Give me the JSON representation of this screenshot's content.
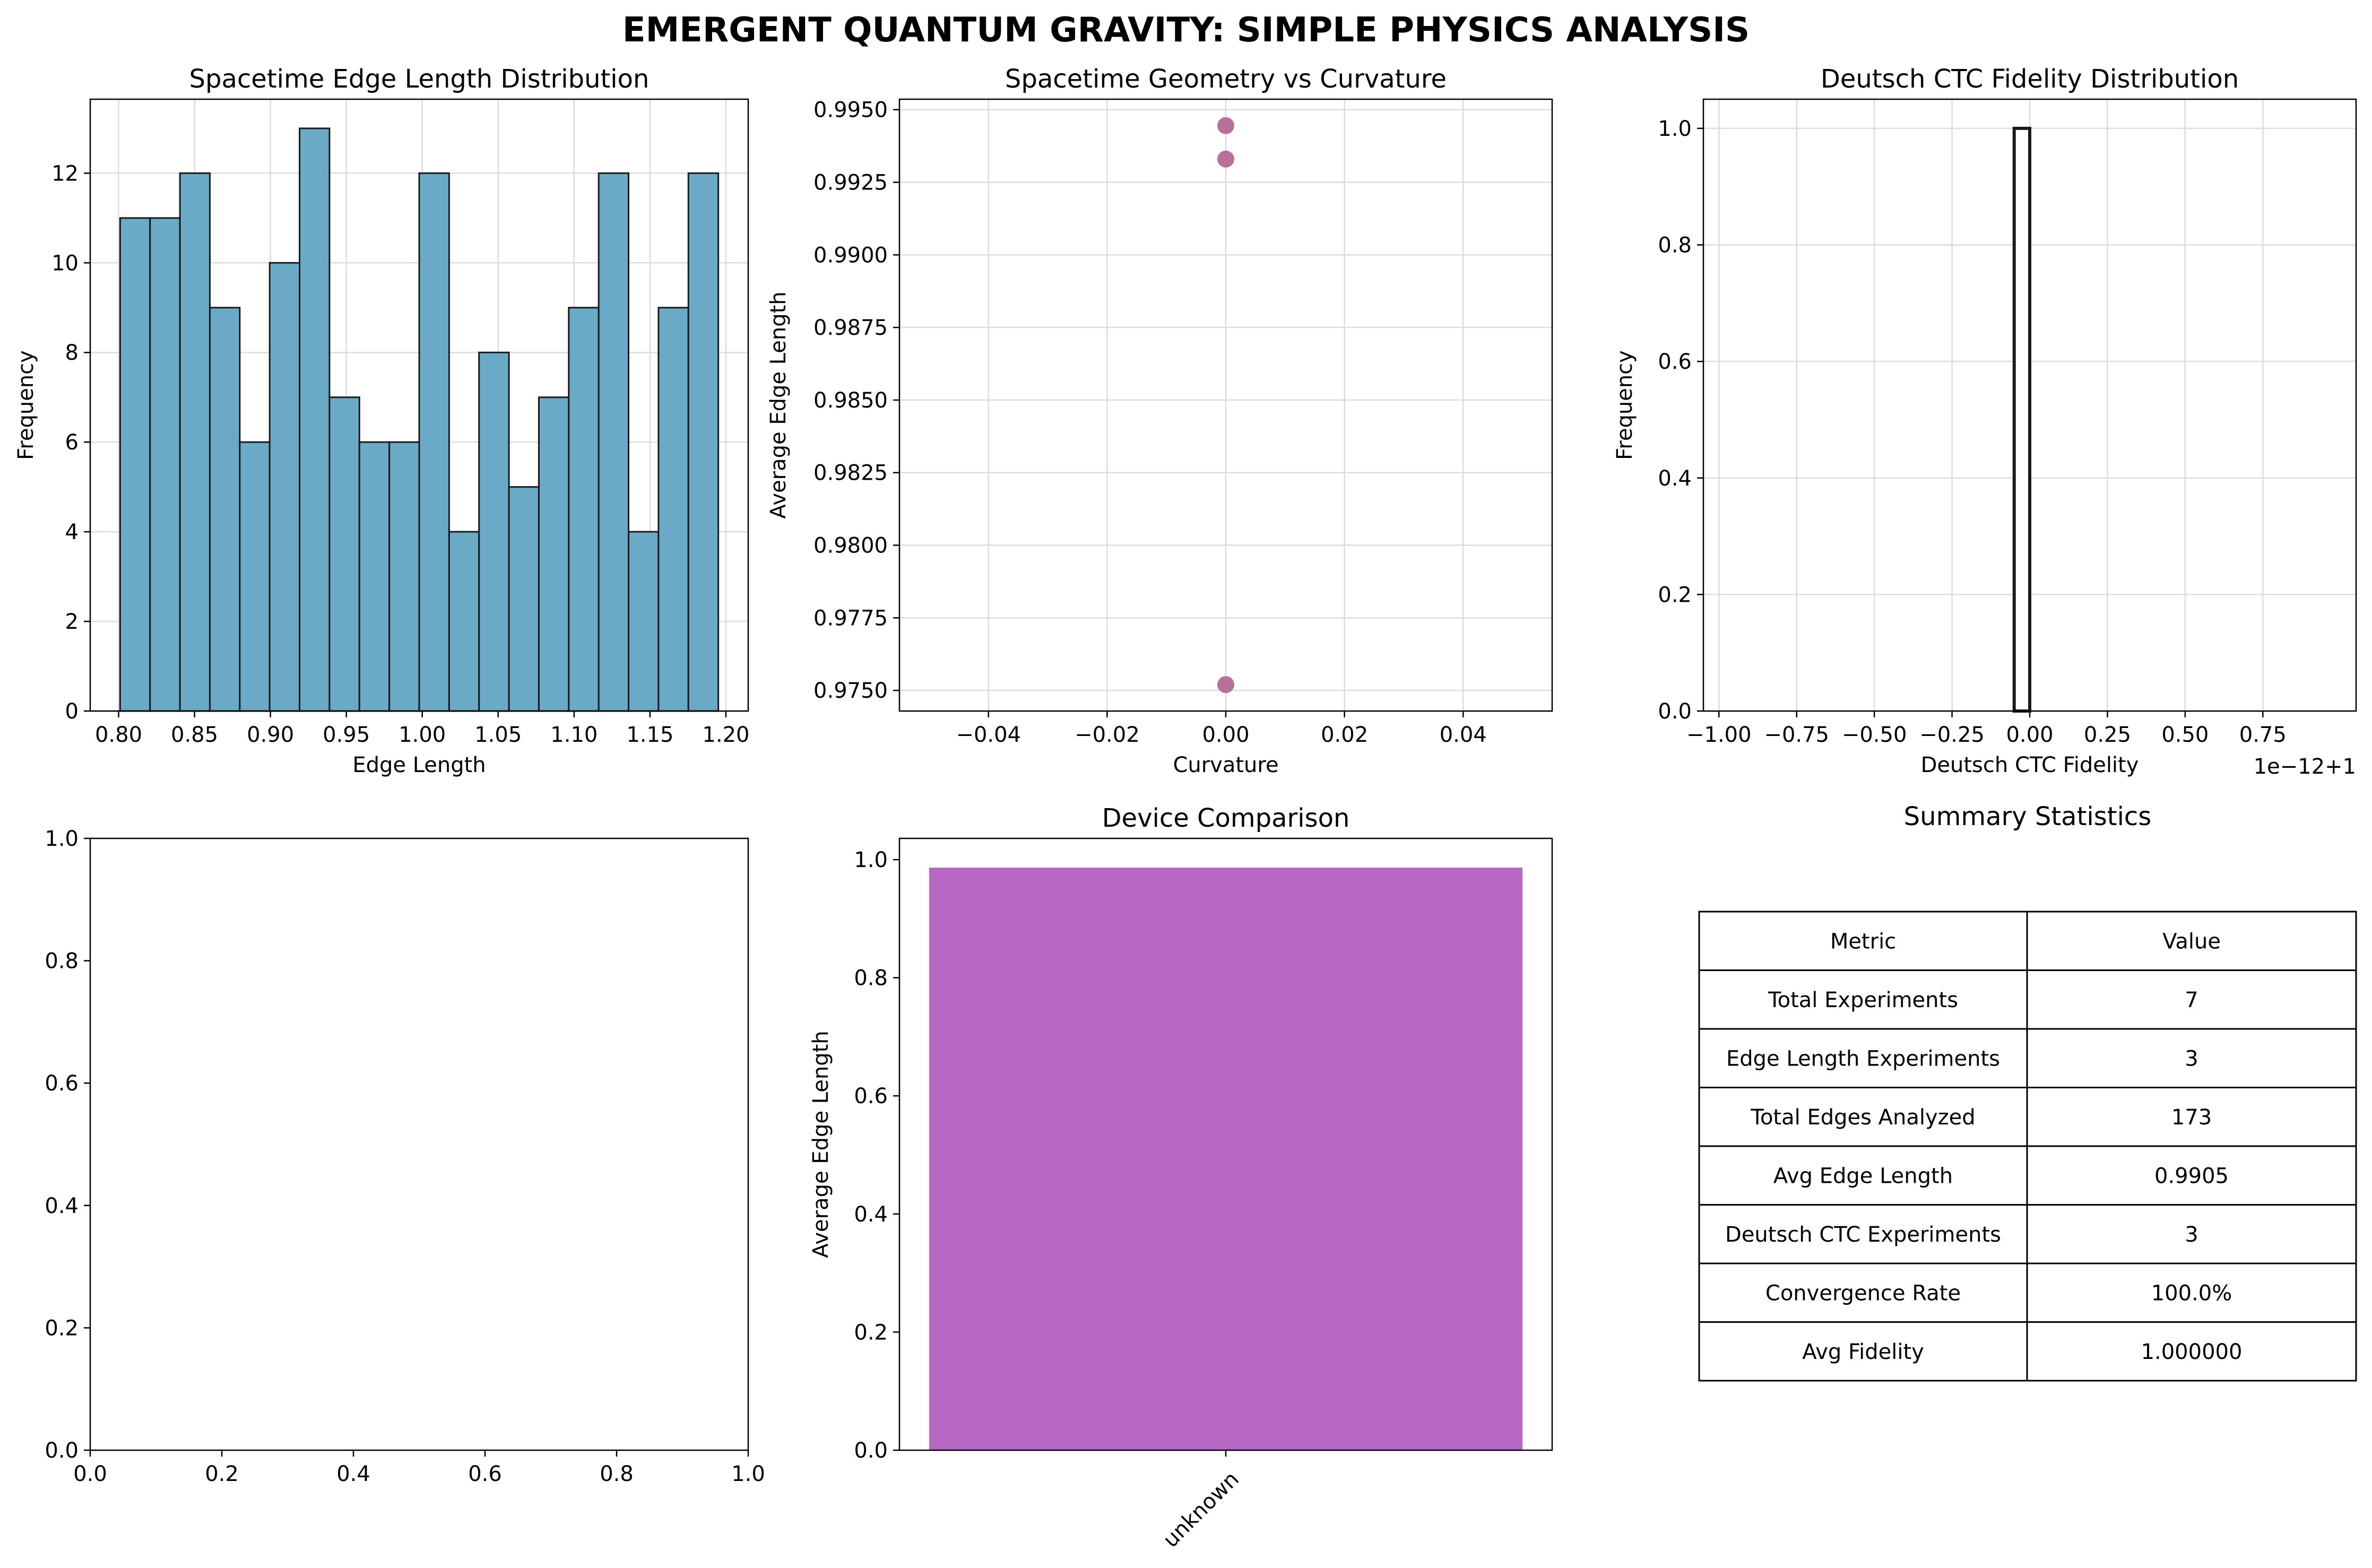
{
  "figure": {
    "suptitle": "EMERGENT QUANTUM GRAVITY: SIMPLE PHYSICS ANALYSIS"
  },
  "chart_data": [
    {
      "id": "edge_hist",
      "type": "bar",
      "title": "Spacetime Edge Length Distribution",
      "xlabel": "Edge Length",
      "ylabel": "Frequency",
      "bin_edges": [
        0.801,
        0.8207,
        0.8404,
        0.8601,
        0.8798,
        0.8995,
        0.9192,
        0.9389,
        0.9586,
        0.9783,
        0.998,
        1.0177,
        1.0374,
        1.0571,
        1.0768,
        1.0965,
        1.1162,
        1.1359,
        1.1556,
        1.1753,
        1.195
      ],
      "values": [
        11,
        11,
        12,
        9,
        6,
        10,
        13,
        7,
        6,
        6,
        12,
        4,
        8,
        5,
        7,
        9,
        12,
        4,
        9,
        12
      ],
      "xlim": [
        0.7813,
        1.2147
      ],
      "ylim": [
        0,
        13.65
      ],
      "xticks": [
        "0.80",
        "0.85",
        "0.90",
        "0.95",
        "1.00",
        "1.05",
        "1.10",
        "1.15",
        "1.20"
      ],
      "xtick_values": [
        0.8,
        0.85,
        0.9,
        0.95,
        1.0,
        1.05,
        1.1,
        1.15,
        1.2
      ],
      "yticks": [
        "0",
        "2",
        "4",
        "6",
        "8",
        "10",
        "12"
      ],
      "ytick_values": [
        0,
        2,
        4,
        6,
        8,
        10,
        12
      ],
      "grid": true,
      "colors": {
        "bar": "#6aaac6",
        "edge": "#1a1a1a"
      }
    },
    {
      "id": "geom_scatter",
      "type": "scatter",
      "title": "Spacetime Geometry vs Curvature",
      "xlabel": "Curvature",
      "ylabel": "Average Edge Length",
      "x": [
        0,
        0,
        0
      ],
      "y": [
        0.99445,
        0.9933,
        0.9752
      ],
      "xlim": [
        -0.055,
        0.055
      ],
      "ylim": [
        0.97429,
        0.99536
      ],
      "xticks": [
        "−0.04",
        "−0.02",
        "0.00",
        "0.02",
        "0.04"
      ],
      "xtick_values": [
        -0.04,
        -0.02,
        0.0,
        0.02,
        0.04
      ],
      "yticks": [
        "0.9750",
        "0.9775",
        "0.9800",
        "0.9825",
        "0.9850",
        "0.9875",
        "0.9900",
        "0.9925",
        "0.9950"
      ],
      "ytick_values": [
        0.975,
        0.9775,
        0.98,
        0.9825,
        0.985,
        0.9875,
        0.99,
        0.9925,
        0.995
      ],
      "grid": true,
      "colors": {
        "point": "#b0628f"
      }
    },
    {
      "id": "ctc_hist",
      "type": "bar",
      "title": "Deutsch CTC Fidelity Distribution",
      "xlabel": "Deutsch CTC Fidelity",
      "ylabel": "Frequency",
      "offset_label": "1e−12+1",
      "bin_edges": [
        -0.05,
        0.0
      ],
      "values": [
        1
      ],
      "xlim": [
        -1.05,
        1.05
      ],
      "ylim": [
        0,
        1.05
      ],
      "xticks": [
        "−1.00",
        "−0.75",
        "−0.50",
        "−0.25",
        "0.00",
        "0.25",
        "0.50",
        "0.75"
      ],
      "xtick_values": [
        -1.0,
        -0.75,
        -0.5,
        -0.25,
        0.0,
        0.25,
        0.5,
        0.75
      ],
      "yticks": [
        "0.0",
        "0.2",
        "0.4",
        "0.6",
        "0.8",
        "1.0"
      ],
      "ytick_values": [
        0,
        0.2,
        0.4,
        0.6,
        0.8,
        1.0
      ],
      "grid": true,
      "colors": {
        "bar": "#1a1a1a"
      }
    },
    {
      "id": "empty_axes",
      "type": "line",
      "title": "",
      "xlim": [
        0,
        1
      ],
      "ylim": [
        0,
        1
      ],
      "xticks": [
        "0.0",
        "0.2",
        "0.4",
        "0.6",
        "0.8",
        "1.0"
      ],
      "xtick_values": [
        0,
        0.2,
        0.4,
        0.6,
        0.8,
        1.0
      ],
      "yticks": [
        "0.0",
        "0.2",
        "0.4",
        "0.6",
        "0.8",
        "1.0"
      ],
      "ytick_values": [
        0,
        0.2,
        0.4,
        0.6,
        0.8,
        1.0
      ],
      "grid": false
    },
    {
      "id": "device_bar",
      "type": "bar",
      "title": "Device Comparison",
      "ylabel": "Average Edge Length",
      "categories": [
        "unknown"
      ],
      "values": [
        0.9865
      ],
      "ylim": [
        0,
        1.036
      ],
      "yticks": [
        "0.0",
        "0.2",
        "0.4",
        "0.6",
        "0.8",
        "1.0"
      ],
      "ytick_values": [
        0,
        0.2,
        0.4,
        0.6,
        0.8,
        1.0
      ],
      "grid": false,
      "colors": {
        "bar": "#b967c5"
      }
    },
    {
      "id": "summary_table",
      "type": "table",
      "title": "Summary Statistics",
      "columns": [
        "Metric",
        "Value"
      ],
      "rows": [
        [
          "Total Experiments",
          "7"
        ],
        [
          "Edge Length Experiments",
          "3"
        ],
        [
          "Total Edges Analyzed",
          "173"
        ],
        [
          "Avg Edge Length",
          "0.9905"
        ],
        [
          "Deutsch CTC Experiments",
          "3"
        ],
        [
          "Convergence Rate",
          "100.0%"
        ],
        [
          "Avg Fidelity",
          "1.000000"
        ]
      ]
    }
  ]
}
